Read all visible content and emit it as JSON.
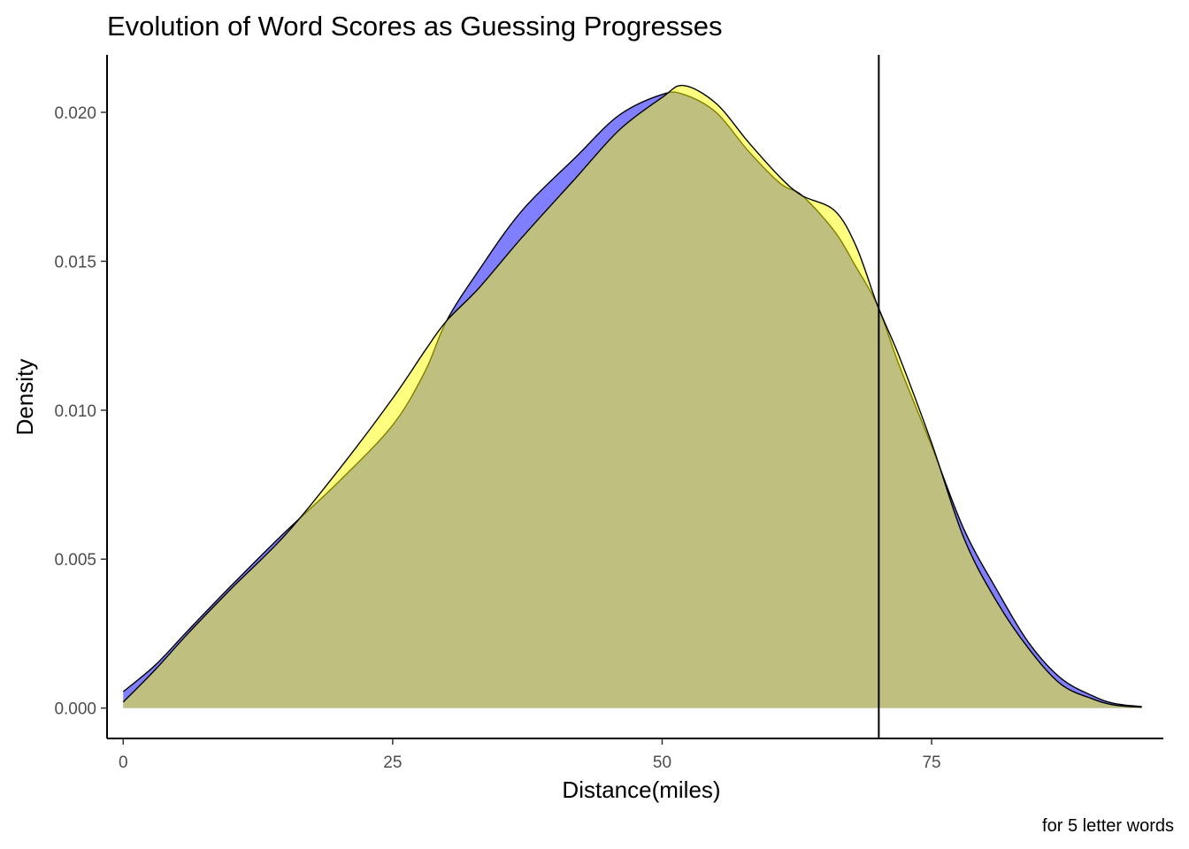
{
  "chart_data": {
    "type": "area",
    "subtype": "density",
    "title": "Evolution of Word Scores as Guessing Progresses",
    "xlabel": "Distance(miles)",
    "ylabel": "Density",
    "caption": "for 5 letter words",
    "xlim": [
      -1.5,
      96.5
    ],
    "ylim": [
      -0.00102,
      0.02193
    ],
    "x_ticks": [
      0,
      25,
      50,
      75
    ],
    "x_tick_labels": [
      "0",
      "25",
      "50",
      "75"
    ],
    "y_ticks": [
      0,
      0.005,
      0.01,
      0.015,
      0.02
    ],
    "y_tick_labels": [
      "0.000",
      "0.005",
      "0.010",
      "0.015",
      "0.020"
    ],
    "grid": false,
    "legend": "none",
    "reference_line": {
      "orientation": "vertical",
      "x": 70.1,
      "color": "#000000"
    },
    "series": [
      {
        "color": "#0000FF",
        "opacity": 0.5,
        "points": [
          [
            0,
            0.00055
          ],
          [
            3,
            0.00145
          ],
          [
            6,
            0.0026
          ],
          [
            10,
            0.0041
          ],
          [
            15,
            0.0059
          ],
          [
            20,
            0.0076
          ],
          [
            25,
            0.0095
          ],
          [
            28,
            0.0113
          ],
          [
            30,
            0.013
          ],
          [
            33,
            0.0147
          ],
          [
            37,
            0.0167
          ],
          [
            42,
            0.0185
          ],
          [
            46,
            0.0199
          ],
          [
            50,
            0.0206
          ],
          [
            52,
            0.0206
          ],
          [
            55,
            0.02
          ],
          [
            58,
            0.0187
          ],
          [
            61,
            0.0176
          ],
          [
            63,
            0.0172
          ],
          [
            66,
            0.016
          ],
          [
            68,
            0.0148
          ],
          [
            70,
            0.0135
          ],
          [
            72,
            0.0115
          ],
          [
            75,
            0.0088
          ],
          [
            78,
            0.006
          ],
          [
            81,
            0.004
          ],
          [
            84,
            0.0022
          ],
          [
            87,
            0.001
          ],
          [
            90,
            0.0004
          ],
          [
            92,
            0.00015
          ],
          [
            94.5,
            5e-05
          ]
        ]
      },
      {
        "color": "#FFFF00",
        "opacity": 0.5,
        "points": [
          [
            0,
            0.0002
          ],
          [
            3,
            0.0013
          ],
          [
            6,
            0.0025
          ],
          [
            10,
            0.004
          ],
          [
            15,
            0.0058
          ],
          [
            20,
            0.008
          ],
          [
            25,
            0.0104
          ],
          [
            28,
            0.012
          ],
          [
            30,
            0.013
          ],
          [
            33,
            0.0141
          ],
          [
            37,
            0.0158
          ],
          [
            42,
            0.0178
          ],
          [
            46,
            0.0194
          ],
          [
            50,
            0.0205
          ],
          [
            52,
            0.0209
          ],
          [
            55,
            0.0203
          ],
          [
            58,
            0.019
          ],
          [
            61,
            0.0178
          ],
          [
            63,
            0.0172
          ],
          [
            66,
            0.0167
          ],
          [
            68,
            0.0155
          ],
          [
            70,
            0.0135
          ],
          [
            72,
            0.0118
          ],
          [
            75,
            0.0089
          ],
          [
            78,
            0.0057
          ],
          [
            81,
            0.0036
          ],
          [
            84,
            0.002
          ],
          [
            87,
            0.0008
          ],
          [
            90,
            0.0003
          ],
          [
            92,
            0.0001
          ],
          [
            94.5,
            3e-05
          ]
        ]
      }
    ]
  }
}
